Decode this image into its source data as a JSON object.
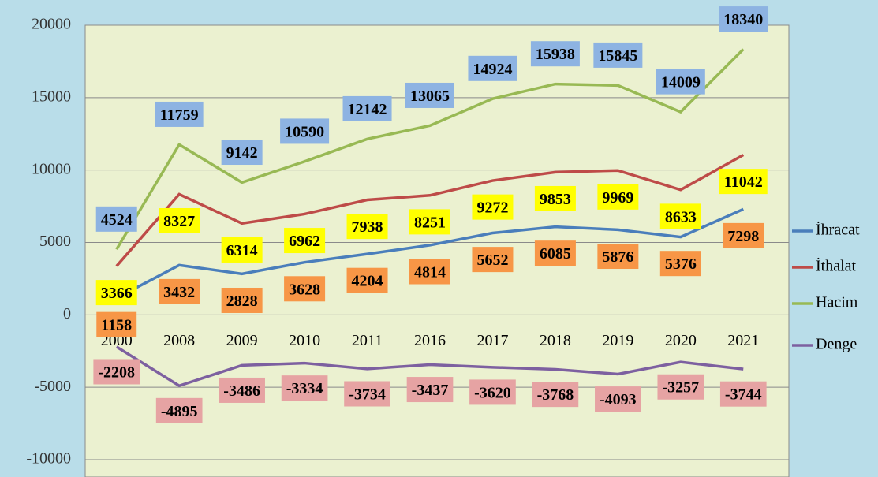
{
  "chart_data": {
    "type": "line",
    "categories": [
      "2000",
      "2008",
      "2009",
      "2010",
      "2011",
      "2016",
      "2017",
      "2018",
      "2019",
      "2020",
      "2021"
    ],
    "series": [
      {
        "name": "İhracat",
        "color": "#4a7ebb",
        "label_color": "#f79646",
        "values": [
          1158,
          3432,
          2828,
          3628,
          4204,
          4814,
          5652,
          6085,
          5876,
          5376,
          7298
        ]
      },
      {
        "name": "İthalat",
        "color": "#be4b48",
        "label_color": "#ffff00",
        "values": [
          3366,
          8327,
          6314,
          6962,
          7938,
          8251,
          9272,
          9853,
          9969,
          8633,
          11042
        ]
      },
      {
        "name": "Hacim",
        "color": "#98b954",
        "label_color": "#8db3e2",
        "values": [
          4524,
          11759,
          9142,
          10590,
          12142,
          13065,
          14924,
          15938,
          15845,
          14009,
          18340
        ]
      },
      {
        "name": "Denge",
        "color": "#7d60a0",
        "label_color": "#e6a3a3",
        "values": [
          -2208,
          -4895,
          -3486,
          -3334,
          -3734,
          -3437,
          -3620,
          -3768,
          -4093,
          -3257,
          -3744
        ]
      }
    ],
    "ylim": [
      -10000,
      20000
    ],
    "yticks": [
      -10000,
      -5000,
      0,
      5000,
      10000,
      15000,
      20000
    ],
    "grid": true,
    "legend": "right"
  }
}
